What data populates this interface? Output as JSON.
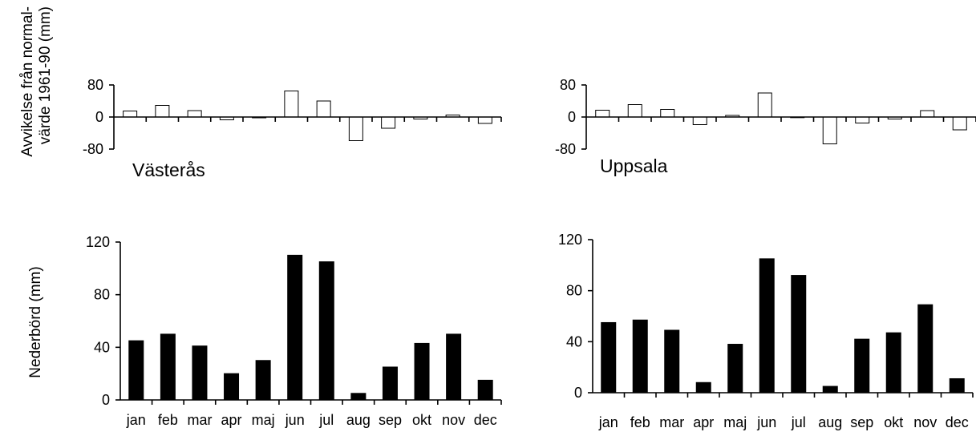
{
  "shared": {
    "deviation_ylabel": [
      "Avvikelse från normal-",
      "värde 1961-90 (mm)"
    ],
    "precip_ylabel": "Nederbörd (mm)",
    "months": [
      "jan",
      "feb",
      "mar",
      "apr",
      "maj",
      "jun",
      "jul",
      "aug",
      "sep",
      "okt",
      "nov",
      "dec"
    ]
  },
  "chart_data": [
    {
      "id": "vasteras-deviation",
      "type": "bar",
      "title": "Västerås",
      "ylabel": "Avvikelse från normal- värde 1961-90 (mm)",
      "ylim": [
        -80,
        80
      ],
      "yticks": [
        80,
        0,
        -80
      ],
      "categories": [
        "jan",
        "feb",
        "mar",
        "apr",
        "maj",
        "jun",
        "jul",
        "aug",
        "sep",
        "okt",
        "nov",
        "dec"
      ],
      "values": [
        15,
        29,
        16,
        -7,
        -2,
        65,
        40,
        -59,
        -28,
        -5,
        5,
        -16
      ],
      "fill": "#ffffff"
    },
    {
      "id": "uppsala-deviation",
      "type": "bar",
      "title": "Uppsala",
      "ylim": [
        -80,
        80
      ],
      "yticks": [
        80,
        0,
        -80
      ],
      "categories": [
        "jan",
        "feb",
        "mar",
        "apr",
        "maj",
        "jun",
        "jul",
        "aug",
        "sep",
        "okt",
        "nov",
        "dec"
      ],
      "values": [
        17,
        31,
        19,
        -19,
        4,
        60,
        0,
        -67,
        -15,
        -5,
        16,
        -32
      ],
      "fill": "#ffffff"
    },
    {
      "id": "vasteras-precip",
      "type": "bar",
      "ylabel": "Nederbörd (mm)",
      "ylim": [
        0,
        120
      ],
      "yticks": [
        120,
        80,
        40,
        0
      ],
      "categories": [
        "jan",
        "feb",
        "mar",
        "apr",
        "maj",
        "jun",
        "jul",
        "aug",
        "sep",
        "okt",
        "nov",
        "dec"
      ],
      "values": [
        45,
        50,
        41,
        20,
        30,
        110,
        105,
        5,
        25,
        43,
        50,
        15
      ],
      "fill": "#000000"
    },
    {
      "id": "uppsala-precip",
      "type": "bar",
      "ylim": [
        0,
        120
      ],
      "yticks": [
        120,
        80,
        40,
        0
      ],
      "categories": [
        "jan",
        "feb",
        "mar",
        "apr",
        "maj",
        "jun",
        "jul",
        "aug",
        "sep",
        "okt",
        "nov",
        "dec"
      ],
      "values": [
        55,
        57,
        49,
        8,
        38,
        105,
        92,
        5,
        42,
        47,
        69,
        11
      ],
      "fill": "#000000"
    }
  ]
}
